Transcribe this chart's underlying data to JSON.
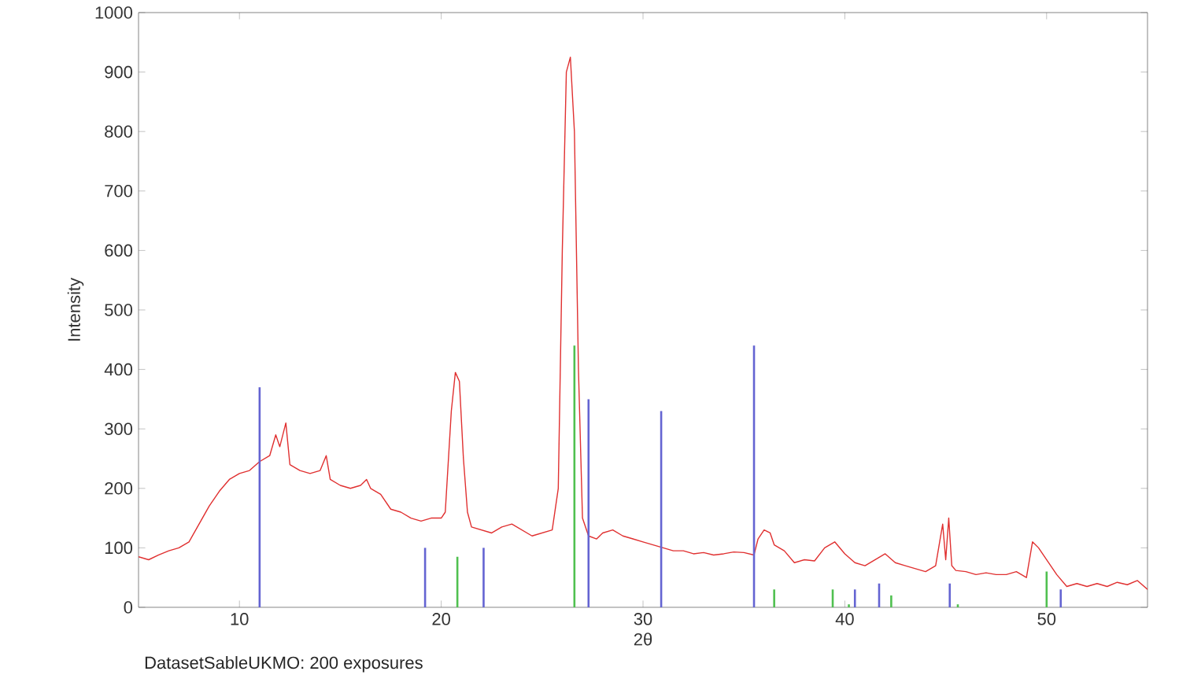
{
  "chart_data": {
    "type": "line",
    "xlabel": "2θ",
    "ylabel": "Intensity",
    "annotations": [
      "DatasetSableUKMO: 200 exposures"
    ],
    "xlim": [
      5,
      55
    ],
    "ylim": [
      0,
      1000
    ],
    "xticks": [
      10,
      20,
      30,
      40,
      50
    ],
    "yticks": [
      0,
      100,
      200,
      300,
      400,
      500,
      600,
      700,
      800,
      900,
      1000
    ],
    "series": [
      {
        "color": "#e03030",
        "x": [
          5,
          5.5,
          6,
          6.5,
          7,
          7.5,
          8,
          8.5,
          9,
          9.5,
          10,
          10.5,
          11,
          11.5,
          11.8,
          12,
          12.3,
          12.5,
          13,
          13.5,
          14,
          14.3,
          14.5,
          15,
          15.5,
          16,
          16.3,
          16.5,
          17,
          17.5,
          18,
          18.5,
          19,
          19.5,
          20,
          20.2,
          20.5,
          20.7,
          20.9,
          21.1,
          21.3,
          21.5,
          22,
          22.5,
          23,
          23.5,
          24,
          24.5,
          25,
          25.5,
          25.8,
          26,
          26.2,
          26.4,
          26.6,
          26.8,
          27,
          27.3,
          27.7,
          28,
          28.5,
          29,
          29.5,
          30,
          30.5,
          31,
          31.5,
          32,
          32.5,
          33,
          33.5,
          34,
          34.5,
          35,
          35.5,
          35.7,
          36,
          36.3,
          36.5,
          37,
          37.5,
          38,
          38.5,
          39,
          39.5,
          40,
          40.5,
          41,
          41.5,
          42,
          42.5,
          43,
          43.5,
          44,
          44.5,
          44.85,
          45,
          45.15,
          45.3,
          45.5,
          46,
          46.5,
          47,
          47.5,
          48,
          48.5,
          49,
          49.3,
          49.6,
          50,
          50.5,
          51,
          51.5,
          52,
          52.5,
          53,
          53.5,
          54,
          54.5,
          55
        ],
        "values": [
          85,
          80,
          88,
          95,
          100,
          110,
          140,
          170,
          195,
          215,
          225,
          230,
          245,
          255,
          290,
          270,
          310,
          240,
          230,
          225,
          230,
          255,
          215,
          205,
          200,
          205,
          215,
          200,
          190,
          165,
          160,
          150,
          145,
          150,
          150,
          160,
          330,
          395,
          380,
          250,
          160,
          135,
          130,
          125,
          135,
          140,
          130,
          120,
          125,
          130,
          200,
          600,
          900,
          925,
          800,
          400,
          150,
          120,
          115,
          125,
          130,
          120,
          115,
          110,
          105,
          100,
          95,
          95,
          90,
          92,
          88,
          90,
          93,
          92,
          88,
          115,
          130,
          125,
          105,
          95,
          75,
          80,
          78,
          100,
          110,
          90,
          75,
          70,
          80,
          90,
          75,
          70,
          65,
          60,
          70,
          140,
          80,
          150,
          70,
          62,
          60,
          55,
          58,
          55,
          55,
          60,
          50,
          110,
          100,
          80,
          55,
          35,
          40,
          35,
          40,
          35,
          42,
          38,
          45,
          30
        ]
      },
      {
        "type": "bar",
        "color": "#6464d2",
        "x": [
          11,
          19.2,
          22.1,
          27.3,
          30.9,
          35.5,
          40.5,
          41.7,
          45.2,
          50.7
        ],
        "values": [
          370,
          100,
          100,
          350,
          330,
          440,
          30,
          40,
          40,
          30
        ]
      },
      {
        "type": "bar",
        "color": "#50c050",
        "x": [
          20.8,
          26.6,
          36.5,
          39.4,
          40.2,
          42.3,
          45.6,
          50.0
        ],
        "values": [
          85,
          440,
          30,
          30,
          5,
          20,
          5,
          60
        ]
      }
    ]
  }
}
